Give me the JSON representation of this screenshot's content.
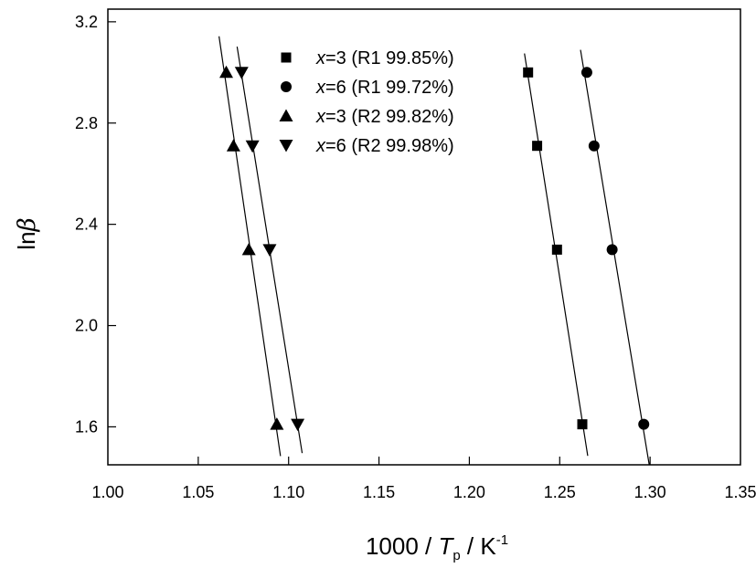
{
  "chart_data": {
    "type": "scatter",
    "title": "",
    "xlabel": {
      "prefix": "1000 / ",
      "symbol": "T",
      "sub": "p",
      "unit": " / K",
      "sup": "-1"
    },
    "ylabel": {
      "prefix": "ln",
      "symbol": "β"
    },
    "xlim": [
      1.0,
      1.35
    ],
    "ylim": [
      1.45,
      3.25
    ],
    "xticks": [
      "1.00",
      "1.05",
      "1.10",
      "1.15",
      "1.20",
      "1.25",
      "1.30",
      "1.35"
    ],
    "yticks": [
      "1.6",
      "2.0",
      "2.4",
      "2.8",
      "3.2"
    ],
    "grid": false,
    "legend_position": "top",
    "series": [
      {
        "name": "x=3 (R1 99.85%)",
        "name_var": "x",
        "name_rest": "=3 (R1 99.85%)",
        "marker": "square",
        "x": [
          1.2325,
          1.2375,
          1.2485,
          1.2625
        ],
        "y": [
          3.0,
          2.71,
          2.3,
          1.61
        ],
        "fit_x": [
          1.2305,
          1.2655
        ]
      },
      {
        "name": "x=6 (R1 99.72%)",
        "name_var": "x",
        "name_rest": "=6 (R1 99.72%)",
        "marker": "circle",
        "x": [
          1.265,
          1.269,
          1.279,
          1.2965
        ],
        "y": [
          3.0,
          2.71,
          2.3,
          1.61
        ],
        "fit_x": [
          1.2615,
          1.2995
        ]
      },
      {
        "name": "x=3 (R2 99.82%)",
        "name_var": "x",
        "name_rest": "=3 (R2 99.82%)",
        "marker": "triangle-up",
        "x": [
          1.0655,
          1.0695,
          1.078,
          1.0935
        ],
        "y": [
          3.0,
          2.71,
          2.3,
          1.61
        ],
        "fit_x": [
          1.0615,
          1.0955
        ]
      },
      {
        "name": "x=6 (R2 99.98%)",
        "name_var": "x",
        "name_rest": "=6 (R2 99.98%)",
        "marker": "triangle-down",
        "x": [
          1.074,
          1.08,
          1.0895,
          1.105
        ],
        "y": [
          3.0,
          2.71,
          2.3,
          1.61
        ],
        "fit_x": [
          1.0715,
          1.1075
        ]
      }
    ]
  }
}
